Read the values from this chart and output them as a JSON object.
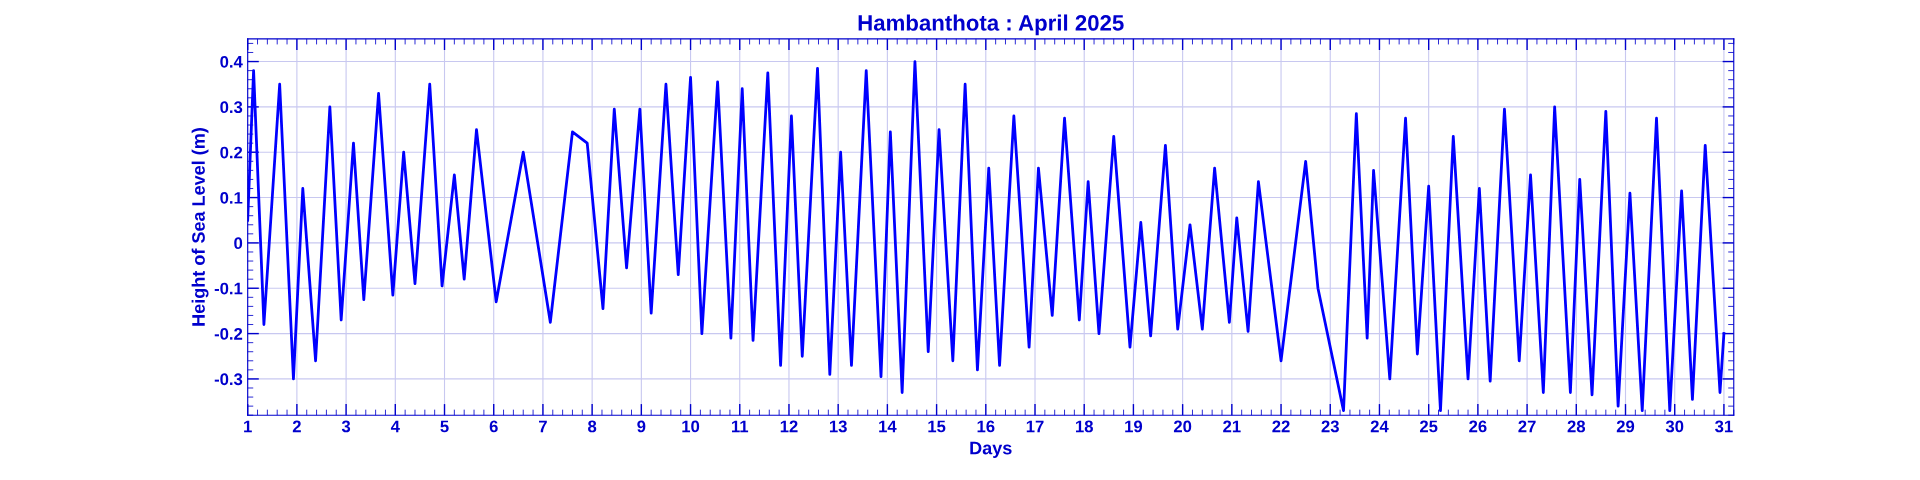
{
  "chart_data": {
    "type": "line",
    "title": "Hambanthota : April 2025",
    "xlabel": "Days",
    "ylabel": "Height of Sea Level (m)",
    "xlim": [
      1,
      31.2
    ],
    "xticks": [
      1,
      2,
      3,
      4,
      5,
      6,
      7,
      8,
      9,
      10,
      11,
      12,
      13,
      14,
      15,
      16,
      17,
      18,
      19,
      20,
      21,
      22,
      23,
      24,
      25,
      26,
      27,
      28,
      29,
      30,
      31
    ],
    "ylim": [
      -0.38,
      0.45
    ],
    "yticks": [
      -0.3,
      -0.2,
      -0.1,
      0,
      0.1,
      0.2,
      0.3,
      0.4
    ],
    "grid": true,
    "marker": "none",
    "line_style": "solid",
    "series": [
      {
        "color": "#0000ff",
        "x": [
          1.0,
          1.12,
          1.33,
          1.65,
          1.93,
          2.12,
          2.38,
          2.67,
          2.9,
          3.15,
          3.36,
          3.66,
          3.95,
          4.17,
          4.4,
          4.7,
          4.95,
          5.2,
          5.4,
          5.65,
          6.05,
          6.6,
          7.15,
          7.6,
          7.9,
          8.22,
          8.45,
          8.7,
          8.97,
          9.2,
          9.5,
          9.75,
          10.0,
          10.23,
          10.55,
          10.82,
          11.05,
          11.27,
          11.57,
          11.83,
          12.05,
          12.27,
          12.58,
          12.83,
          13.05,
          13.27,
          13.57,
          13.87,
          14.06,
          14.3,
          14.56,
          14.83,
          15.05,
          15.33,
          15.58,
          15.83,
          16.06,
          16.28,
          16.57,
          16.88,
          17.07,
          17.35,
          17.6,
          17.9,
          18.08,
          18.3,
          18.6,
          18.93,
          19.15,
          19.35,
          19.65,
          19.9,
          20.15,
          20.4,
          20.65,
          20.95,
          21.1,
          21.33,
          21.54,
          22.0,
          22.5,
          22.75,
          23.27,
          23.53,
          23.75,
          23.88,
          24.21,
          24.53,
          24.77,
          25.0,
          25.24,
          25.5,
          25.8,
          26.03,
          26.25,
          26.54,
          26.84,
          27.07,
          27.33,
          27.56,
          27.88,
          28.07,
          28.32,
          28.6,
          28.85,
          29.09,
          29.34,
          29.63,
          29.9,
          30.14,
          30.36,
          30.62,
          30.92,
          31.0
        ],
        "values": [
          0.05,
          0.38,
          -0.18,
          0.35,
          -0.3,
          0.12,
          -0.26,
          0.3,
          -0.17,
          0.22,
          -0.125,
          0.33,
          -0.115,
          0.2,
          -0.09,
          0.35,
          -0.095,
          0.15,
          -0.08,
          0.25,
          -0.13,
          0.2,
          -0.175,
          0.245,
          0.22,
          -0.145,
          0.295,
          -0.055,
          0.295,
          -0.155,
          0.35,
          -0.07,
          0.365,
          -0.2,
          0.355,
          -0.21,
          0.34,
          -0.215,
          0.375,
          -0.27,
          0.28,
          -0.25,
          0.385,
          -0.29,
          0.2,
          -0.27,
          0.38,
          -0.295,
          0.245,
          -0.33,
          0.4,
          -0.24,
          0.25,
          -0.26,
          0.35,
          -0.28,
          0.165,
          -0.27,
          0.28,
          -0.23,
          0.165,
          -0.16,
          0.275,
          -0.17,
          0.135,
          -0.2,
          0.235,
          -0.23,
          0.045,
          -0.205,
          0.215,
          -0.19,
          0.04,
          -0.19,
          0.165,
          -0.175,
          0.055,
          -0.195,
          0.135,
          -0.26,
          0.18,
          -0.1,
          -0.37,
          0.285,
          -0.21,
          0.16,
          -0.3,
          0.275,
          -0.245,
          0.125,
          -0.37,
          0.235,
          -0.3,
          0.12,
          -0.305,
          0.295,
          -0.26,
          0.15,
          -0.33,
          0.3,
          -0.33,
          0.14,
          -0.335,
          0.29,
          -0.36,
          0.11,
          -0.37,
          0.275,
          -0.37,
          0.115,
          -0.345,
          0.215,
          -0.33,
          -0.2
        ]
      }
    ]
  }
}
